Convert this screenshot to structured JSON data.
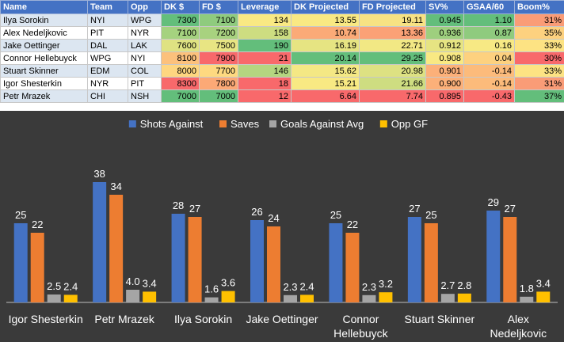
{
  "table": {
    "headers": [
      "Name",
      "Team",
      "Opp",
      "DK $",
      "FD $",
      "Leverage",
      "DK Projected",
      "FD Projected",
      "SV%",
      "GSAA/60",
      "Boom%"
    ],
    "rows": [
      [
        "Ilya Sorokin",
        "NYI",
        "WPG",
        "7300",
        "7100",
        "134",
        "13.55",
        "19.11",
        "0.945",
        "1.10",
        "31%"
      ],
      [
        "Alex Nedeljkovic",
        "PIT",
        "NYR",
        "7100",
        "7200",
        "158",
        "10.74",
        "13.36",
        "0.936",
        "0.87",
        "35%"
      ],
      [
        "Jake Oettinger",
        "DAL",
        "LAK",
        "7600",
        "7500",
        "190",
        "16.19",
        "22.71",
        "0.912",
        "0.16",
        "33%"
      ],
      [
        "Connor Hellebuyck",
        "WPG",
        "NYI",
        "8100",
        "7900",
        "21",
        "20.14",
        "29.25",
        "0.908",
        "0.04",
        "30%"
      ],
      [
        "Stuart Skinner",
        "EDM",
        "COL",
        "8000",
        "7700",
        "146",
        "15.62",
        "20.98",
        "0.901",
        "-0.14",
        "33%"
      ],
      [
        "Igor Shesterkin",
        "NYR",
        "PIT",
        "8300",
        "7800",
        "18",
        "15.21",
        "21.66",
        "0.900",
        "-0.14",
        "31%"
      ],
      [
        "Petr Mrazek",
        "CHI",
        "NSH",
        "7000",
        "7000",
        "12",
        "6.64",
        "7.74",
        "0.895",
        "-0.43",
        "37%"
      ]
    ],
    "cell_colors": [
      [
        null,
        null,
        null,
        "#63be7b",
        "#8fcb7e",
        "#f9e983",
        "#f9e983",
        "#f7e283",
        "#63be7b",
        "#63be7b",
        "#fa9c77"
      ],
      [
        null,
        null,
        null,
        "#a5d27f",
        "#a8d27f",
        "#cddd81",
        "#fbaa77",
        "#fba176",
        "#9ecf7e",
        "#8fcb7e",
        "#fdd17f"
      ],
      [
        null,
        null,
        null,
        "#dfe282",
        "#e8e583",
        "#63be7b",
        "#e6e482",
        "#f2e884",
        "#e6e482",
        "#f7e984",
        "#fde383"
      ],
      [
        null,
        null,
        null,
        "#fcc17c",
        "#f8696b",
        "#f8696b",
        "#63be7b",
        "#63be7b",
        "#f9e983",
        "#fdd17f",
        "#f8696b"
      ],
      [
        null,
        null,
        null,
        "#fed680",
        "#fed980",
        "#b4d680",
        "#f4e884",
        "#dde182",
        "#fcb079",
        "#fcbb7b",
        "#fde383"
      ],
      [
        null,
        null,
        null,
        "#f8696b",
        "#fca976",
        "#f8696b",
        "#f8e983",
        "#cedd81",
        "#fcb079",
        "#fcbb7b",
        "#fa9c77"
      ],
      [
        null,
        null,
        null,
        "#63be7b",
        "#63be7b",
        "#f8696b",
        "#f8696b",
        "#f8696b",
        "#f8696b",
        "#f8696b",
        "#63be7b"
      ]
    ]
  },
  "chart_data": {
    "type": "bar",
    "categories": [
      [
        "Igor Shesterkin"
      ],
      [
        "Petr Mrazek"
      ],
      [
        "Ilya Sorokin"
      ],
      [
        "Jake Oettinger"
      ],
      [
        "Connor",
        "Hellebuyck"
      ],
      [
        "Stuart Skinner"
      ],
      [
        "Alex",
        "Nedeljkovic"
      ]
    ],
    "series": [
      {
        "name": "Shots Against",
        "color": "#4472c4",
        "values": [
          25,
          38,
          28,
          26,
          25,
          27,
          29
        ]
      },
      {
        "name": "Saves",
        "color": "#ed7d31",
        "values": [
          22,
          34,
          27,
          24,
          22,
          25,
          27
        ]
      },
      {
        "name": "Goals Against Avg",
        "color": "#a5a5a5",
        "values": [
          2.5,
          4.0,
          1.6,
          2.3,
          2.3,
          2.7,
          1.8
        ]
      },
      {
        "name": "Opp GF",
        "color": "#ffc000",
        "values": [
          2.4,
          3.4,
          3.6,
          2.4,
          3.2,
          2.8,
          3.4
        ]
      }
    ],
    "data_labels": [
      [
        "25",
        "38",
        "28",
        "26",
        "25",
        "27",
        "29"
      ],
      [
        "22",
        "34",
        "27",
        "24",
        "22",
        "25",
        "27"
      ],
      [
        "2.5",
        "4.0",
        "1.6",
        "2.3",
        "2.3",
        "2.7",
        "1.8"
      ],
      [
        "2.4",
        "3.4",
        "3.6",
        "2.4",
        "3.2",
        "2.8",
        "3.4"
      ]
    ],
    "ylim": [
      0,
      40
    ],
    "grid": false,
    "legend": "top-center",
    "colors": {
      "background": "#3a3a3a",
      "text": "#ffffff",
      "axis": "#bfbfbf"
    }
  }
}
